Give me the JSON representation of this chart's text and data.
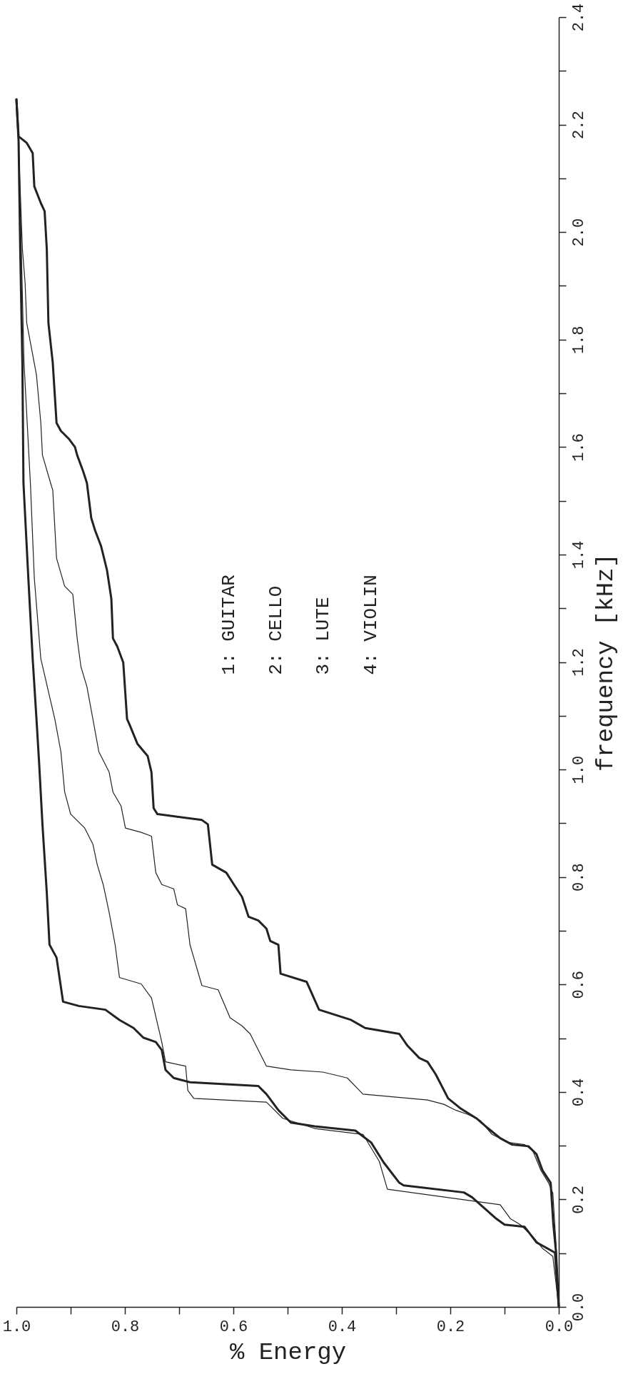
{
  "chart_data": {
    "type": "line",
    "xlabel": "% Energy",
    "ylabel": "frequency [kHz]",
    "annotations": [
      "1: GUITAR",
      "2: CELLO",
      "3: LUTE",
      "4: VIOLIN"
    ],
    "xlim": [
      1,
      0
    ],
    "ylim": [
      0,
      2.4
    ],
    "yticks": [
      {
        "value": 0,
        "label": "0.0"
      },
      {
        "value": 0.1,
        "label": null
      },
      0.2,
      {
        "value": 0.3,
        "label": null
      },
      0.4,
      {
        "value": 0.5,
        "label": null
      },
      0.6,
      {
        "value": 0.7,
        "label": null
      },
      0.8,
      {
        "value": 0.9,
        "label": null
      },
      {
        "value": 1,
        "label": "1.0"
      },
      {
        "value": 1.1,
        "label": null
      },
      1.2,
      {
        "value": 1.3,
        "label": null
      },
      1.4,
      {
        "value": 1.5,
        "label": null
      },
      1.6,
      {
        "value": 1.7,
        "label": null
      },
      1.8,
      {
        "value": 1.9,
        "label": null
      },
      {
        "value": 2,
        "label": "2.0"
      },
      {
        "value": 2.1,
        "label": null
      },
      2.2,
      {
        "value": 2.3,
        "label": null
      },
      2.4
    ],
    "xticks": [
      {
        "value": 0,
        "label": "0.0"
      },
      {
        "value": 0.1,
        "label": null
      },
      0.2,
      {
        "value": 0.3,
        "label": null
      },
      0.4,
      {
        "value": 0.5,
        "label": null
      },
      0.6,
      {
        "value": 0.7,
        "label": null
      },
      0.8,
      {
        "value": 0.9,
        "label": null
      },
      {
        "value": 1,
        "label": "1.0"
      }
    ],
    "grid": false,
    "series": [
      {
        "color": "#222222",
        "values": [
          0,
          0.101,
          0.12,
          0.149,
          0.153,
          0.164,
          0.204,
          0.213,
          0.226,
          0.231,
          0.269,
          0.306,
          0.328,
          0.336,
          0.343,
          0.366,
          0.396,
          0.411,
          0.418,
          0.426,
          0.441,
          0.478,
          0.493,
          0.501,
          0.519,
          0.534,
          0.553,
          0.56,
          0.568,
          0.65,
          0.674,
          0.771,
          0.898,
          1.01,
          1.094,
          1.206,
          1.356,
          1.533,
          1.757,
          1.969,
          2.17,
          2.247
        ],
        "x": [
          0,
          0.007,
          0.041,
          0.063,
          0.1,
          0.115,
          0.16,
          0.175,
          0.286,
          0.294,
          0.323,
          0.346,
          0.375,
          0.45,
          0.494,
          0.517,
          0.539,
          0.554,
          0.68,
          0.71,
          0.725,
          0.732,
          0.743,
          0.766,
          0.784,
          0.81,
          0.836,
          0.885,
          0.914,
          0.926,
          0.939,
          0.944,
          0.952,
          0.958,
          0.963,
          0.97,
          0.978,
          0.987,
          0.989,
          0.993,
          0.996,
          1.0
        ]
      },
      {
        "color": "#222222",
        "values": [
          0,
          0.094,
          0.109,
          0.131,
          0.153,
          0.164,
          0.19,
          0.219,
          0.271,
          0.321,
          0.332,
          0.351,
          0.381,
          0.388,
          0.403,
          0.448,
          0.456,
          0.493,
          0.575,
          0.601,
          0.613,
          0.674,
          0.734,
          0.786,
          0.823,
          0.861,
          0.891,
          0.917,
          0.958,
          1.033,
          1.093,
          1.206,
          1.356,
          1.528,
          1.757,
          1.969,
          2.201,
          2.247
        ],
        "x": [
          0,
          0.011,
          0.03,
          0.048,
          0.071,
          0.089,
          0.108,
          0.316,
          0.331,
          0.361,
          0.45,
          0.509,
          0.539,
          0.673,
          0.684,
          0.688,
          0.725,
          0.732,
          0.751,
          0.77,
          0.81,
          0.818,
          0.829,
          0.84,
          0.851,
          0.859,
          0.874,
          0.9,
          0.911,
          0.918,
          0.929,
          0.955,
          0.967,
          0.974,
          0.986,
          0.991,
          0.997,
          1.0
        ]
      },
      {
        "color": "#222222",
        "values": [
          0,
          0.116,
          0.212,
          0.231,
          0.254,
          0.291,
          0.302,
          0.306,
          0.321,
          0.347,
          0.358,
          0.366,
          0.377,
          0.385,
          0.396,
          0.426,
          0.437,
          0.441,
          0.448,
          0.508,
          0.523,
          0.538,
          0.59,
          0.598,
          0.65,
          0.674,
          0.741,
          0.748,
          0.778,
          0.786,
          0.808,
          0.876,
          0.883,
          0.891,
          0.932,
          0.958,
          0.995,
          1.033,
          1.094,
          1.154,
          1.191,
          1.244,
          1.326,
          1.341,
          1.393,
          1.52,
          1.533,
          1.585,
          1.645,
          1.734,
          1.772,
          1.831,
          1.906,
          1.969,
          2.162,
          2.247
        ],
        "x": [
          0,
          0.005,
          0.011,
          0.019,
          0.033,
          0.048,
          0.063,
          0.093,
          0.123,
          0.145,
          0.167,
          0.19,
          0.212,
          0.242,
          0.361,
          0.39,
          0.435,
          0.494,
          0.539,
          0.569,
          0.584,
          0.606,
          0.628,
          0.658,
          0.673,
          0.68,
          0.688,
          0.703,
          0.71,
          0.732,
          0.743,
          0.751,
          0.77,
          0.799,
          0.807,
          0.822,
          0.829,
          0.848,
          0.859,
          0.87,
          0.881,
          0.888,
          0.896,
          0.911,
          0.926,
          0.933,
          0.937,
          0.952,
          0.955,
          0.963,
          0.97,
          0.981,
          0.984,
          0.989,
          0.996,
          1.0
        ]
      },
      {
        "color": "#222222",
        "values": [
          0,
          0.101,
          0.153,
          0.231,
          0.254,
          0.284,
          0.299,
          0.302,
          0.314,
          0.332,
          0.351,
          0.37,
          0.388,
          0.433,
          0.456,
          0.463,
          0.486,
          0.508,
          0.519,
          0.534,
          0.553,
          0.605,
          0.62,
          0.674,
          0.681,
          0.704,
          0.719,
          0.726,
          0.763,
          0.786,
          0.808,
          0.823,
          0.898,
          0.906,
          0.917,
          0.928,
          0.995,
          1.025,
          1.048,
          1.085,
          1.094,
          1.199,
          1.229,
          1.244,
          1.318,
          1.371,
          1.416,
          1.445,
          1.468,
          1.533,
          1.555,
          1.585,
          1.6,
          1.615,
          1.63,
          1.645,
          1.757,
          1.831,
          1.969,
          2.039,
          2.054,
          2.085,
          2.147,
          2.166,
          2.178,
          2.247
        ],
        "x": [
          0,
          0.005,
          0.01,
          0.015,
          0.03,
          0.041,
          0.056,
          0.086,
          0.108,
          0.13,
          0.152,
          0.182,
          0.204,
          0.227,
          0.242,
          0.257,
          0.279,
          0.294,
          0.357,
          0.383,
          0.442,
          0.465,
          0.513,
          0.517,
          0.532,
          0.539,
          0.554,
          0.572,
          0.584,
          0.599,
          0.613,
          0.639,
          0.647,
          0.658,
          0.74,
          0.747,
          0.751,
          0.758,
          0.777,
          0.792,
          0.796,
          0.803,
          0.814,
          0.822,
          0.825,
          0.833,
          0.844,
          0.855,
          0.862,
          0.87,
          0.877,
          0.888,
          0.892,
          0.903,
          0.918,
          0.926,
          0.933,
          0.941,
          0.944,
          0.948,
          0.955,
          0.967,
          0.97,
          0.981,
          0.996,
          1.0
        ]
      }
    ]
  }
}
